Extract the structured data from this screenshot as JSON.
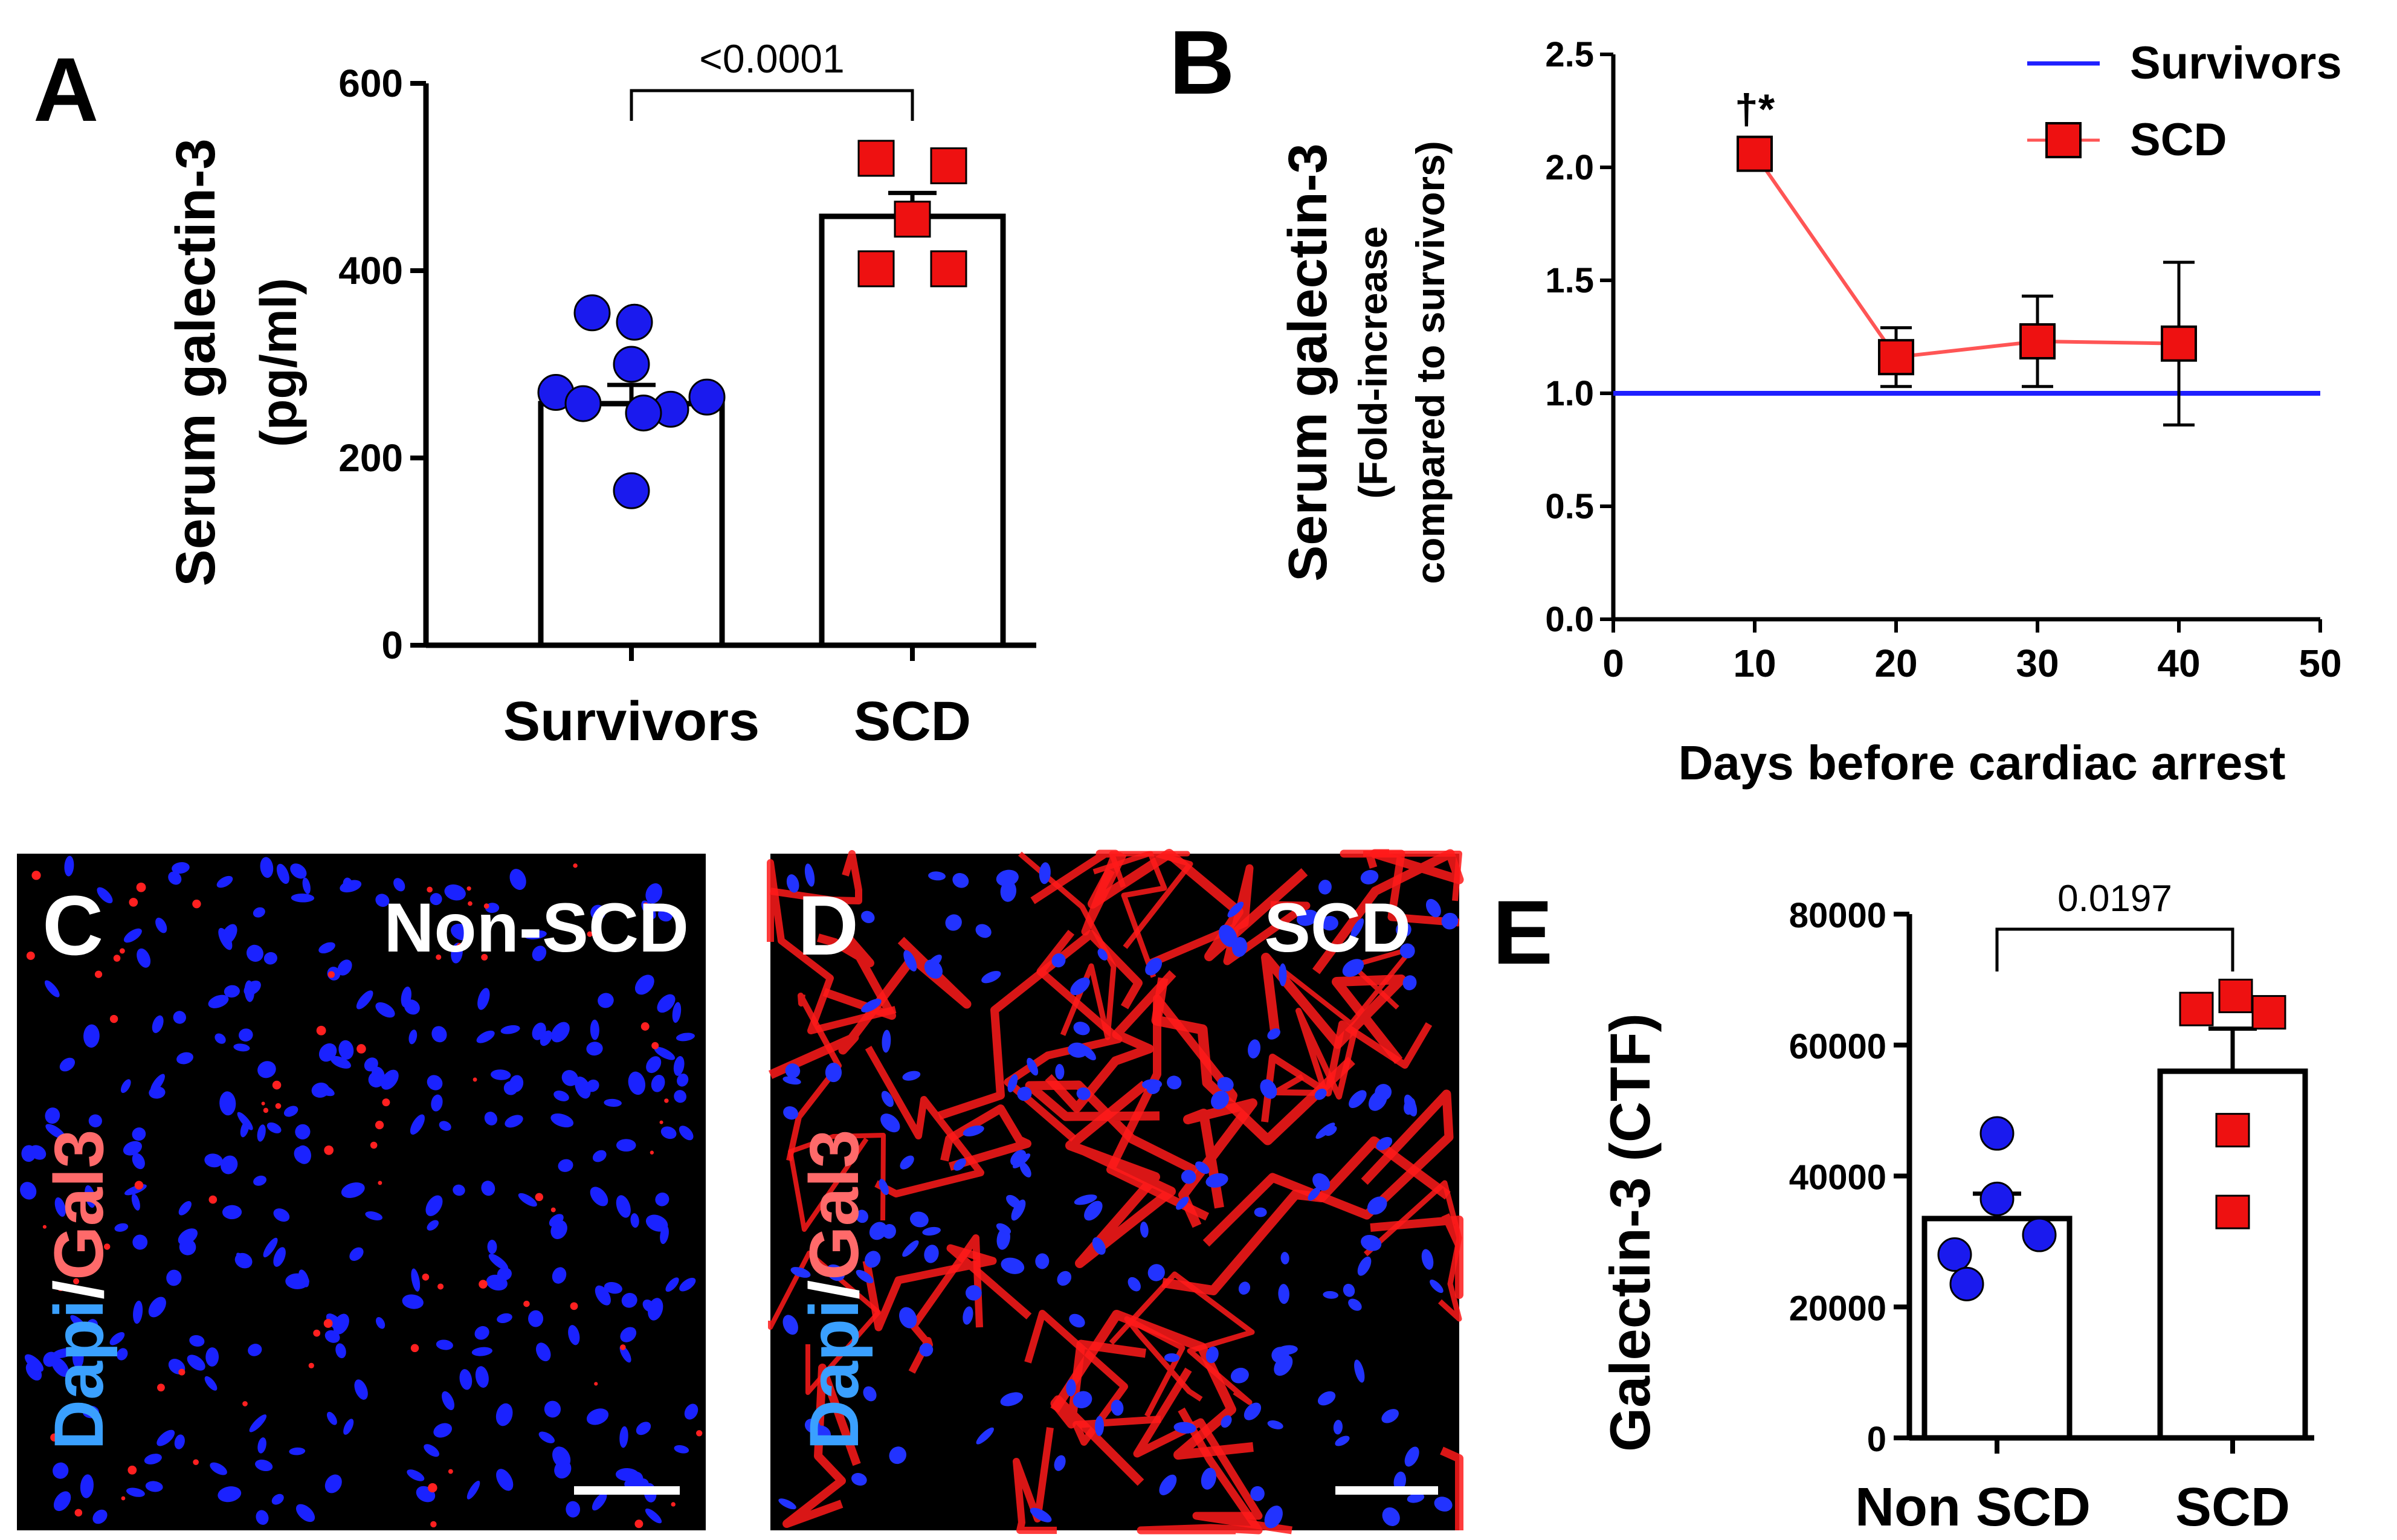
{
  "colors": {
    "blue_marker": "#1a1aee",
    "red_marker": "#ee1111",
    "survivors_line": "#1f1fff",
    "scd_line": "#ff5555",
    "dapi_text": "#3aa0ff",
    "gal3_text": "#ff6a6a",
    "micrograph_bg": "#000000"
  },
  "panels": {
    "A": {
      "letter": "A"
    },
    "B": {
      "letter": "B"
    },
    "C": {
      "letter": "C",
      "title": "Non-SCD",
      "stain_dapi": "Dapi",
      "stain_slash": "/",
      "stain_gal3": "Gal3"
    },
    "D": {
      "letter": "D",
      "title": "SCD",
      "stain_dapi": "Dapi",
      "stain_slash": "/",
      "stain_gal3": "Gal3"
    },
    "E": {
      "letter": "E"
    }
  },
  "chart_data": [
    {
      "id": "A",
      "type": "bar",
      "ylabel_line1": "Serum galectin-3",
      "ylabel_line2": "(pg/ml)",
      "ylim": [
        0,
        600
      ],
      "yticks": [
        "0",
        "200",
        "400",
        "600"
      ],
      "categories": [
        "Survivors",
        "SCD"
      ],
      "means": [
        258,
        458
      ],
      "sem": [
        20,
        25
      ],
      "points": [
        [
          355,
          345,
          300,
          270,
          265,
          258,
          252,
          248,
          165
        ],
        [
          520,
          512,
          455,
          402,
          402
        ]
      ],
      "significance": "<0.0001"
    },
    {
      "id": "B",
      "type": "line",
      "ylabel_line1": "Serum galectin-3",
      "ylabel_line2": "(Fold-increase",
      "ylabel_line3": "compared to survivors)",
      "xlabel": "Days before cardiac arrest",
      "xlim": [
        0,
        50
      ],
      "ylim": [
        0,
        2.5
      ],
      "xticks": [
        "0",
        "10",
        "20",
        "30",
        "40",
        "50"
      ],
      "yticks": [
        "0.0",
        "0.5",
        "1.0",
        "1.5",
        "2.0",
        "2.5"
      ],
      "series": [
        {
          "name": "Survivors",
          "y_constant": 1.0
        },
        {
          "name": "SCD",
          "x": [
            10,
            20,
            30,
            40
          ],
          "y": [
            2.06,
            1.16,
            1.23,
            1.22
          ],
          "err": [
            0,
            0.13,
            0.2,
            0.36
          ]
        }
      ],
      "annotation": "†*"
    },
    {
      "id": "E",
      "type": "bar",
      "ylabel": "Galectin-3 (CTF)",
      "ylim": [
        0,
        80000
      ],
      "yticks": [
        "0",
        "20000",
        "40000",
        "60000",
        "80000"
      ],
      "categories": [
        "Non SCD",
        "SCD"
      ],
      "means": [
        33500,
        56000
      ],
      "sem": [
        3800,
        6500
      ],
      "points": [
        [
          46500,
          36500,
          31000,
          28000,
          23500
        ],
        [
          67500,
          65500,
          65000,
          47000,
          34500
        ]
      ],
      "significance": "0.0197"
    }
  ]
}
